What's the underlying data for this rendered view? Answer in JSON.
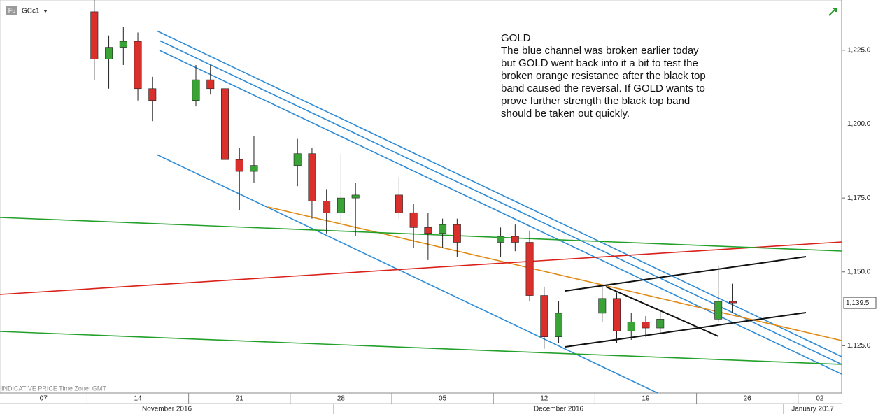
{
  "header": {
    "badge": "Fu",
    "symbol": "GCc1"
  },
  "footer": "INDICATIVE PRICE   Time Zone: GMT",
  "chart_data": {
    "type": "candlestick",
    "annotation_title": "GOLD",
    "annotation": "The blue channel was broken earlier today but GOLD went back into it a bit to test the broken orange resistance after the black top band caused the reversal. If GOLD wants to prove further strength the black top band should be taken out quickly.",
    "x": [
      "2016-11-14",
      "2016-11-15",
      "2016-11-16",
      "2016-11-17",
      "2016-11-18",
      "2016-11-21",
      "2016-11-22",
      "2016-11-23",
      "2016-11-24",
      "2016-11-25",
      "2016-11-28",
      "2016-11-29",
      "2016-11-30",
      "2016-12-01",
      "2016-12-02",
      "2016-12-05",
      "2016-12-06",
      "2016-12-07",
      "2016-12-08",
      "2016-12-09",
      "2016-12-12",
      "2016-12-13",
      "2016-12-14",
      "2016-12-15",
      "2016-12-16",
      "2016-12-19",
      "2016-12-20",
      "2016-12-21",
      "2016-12-22",
      "2016-12-23",
      "2016-12-27",
      "2016-12-28"
    ],
    "open": [
      1238,
      1222,
      1226,
      1228,
      1212,
      1208,
      1215,
      1212,
      1188,
      1184,
      1186,
      1190,
      1174,
      1170,
      1175,
      1176,
      1170,
      1165,
      1163,
      1166,
      1160,
      1162,
      1160,
      1142,
      1128,
      1136,
      1141,
      1130,
      1133,
      1131,
      1134,
      1140
    ],
    "high": [
      1242,
      1230,
      1233,
      1231,
      1216,
      1220,
      1220,
      1214,
      1192,
      1196,
      1195,
      1192,
      1178,
      1190,
      1180,
      1182,
      1173,
      1170,
      1168,
      1168,
      1165,
      1166,
      1164,
      1145,
      1140,
      1145,
      1143,
      1136,
      1135,
      1137,
      1152,
      1146
    ],
    "low": [
      1215,
      1212,
      1220,
      1208,
      1201,
      1206,
      1210,
      1185,
      1171,
      1180,
      1179,
      1168,
      1163,
      1166,
      1162,
      1168,
      1158,
      1154,
      1158,
      1155,
      1155,
      1157,
      1140,
      1124,
      1126,
      1133,
      1126,
      1127,
      1128,
      1129,
      1133,
      1136
    ],
    "close": [
      1222,
      1226,
      1228,
      1212,
      1208,
      1215,
      1212,
      1188,
      1184,
      1186,
      1190,
      1174,
      1170,
      1175,
      1176,
      1170,
      1165,
      1163,
      1166,
      1160,
      1162,
      1160,
      1142,
      1128,
      1136,
      1141,
      1130,
      1133,
      1131,
      1134,
      1140,
      1139.5
    ],
    "last_price": {
      "value": 1139.5,
      "label": "1,139.5"
    },
    "up_color": "#3aa335",
    "down_color": "#d9302c",
    "xlim": [
      "2016-11-08",
      "2017-01-05"
    ],
    "xticks": [
      {
        "value": "2016-11-07",
        "label": "07"
      },
      {
        "value": "2016-11-14",
        "label": "14"
      },
      {
        "value": "2016-11-21",
        "label": "21"
      },
      {
        "value": "2016-11-28",
        "label": "28"
      },
      {
        "value": "2016-12-05",
        "label": "05"
      },
      {
        "value": "2016-12-12",
        "label": "12"
      },
      {
        "value": "2016-12-19",
        "label": "19"
      },
      {
        "value": "2016-12-26",
        "label": "26"
      },
      {
        "value": "2017-01-02",
        "label": "02"
      }
    ],
    "months": [
      {
        "value": "2016-11",
        "label": "November 2016"
      },
      {
        "value": "2016-12",
        "label": "December 2016"
      },
      {
        "value": "2017-01",
        "label": "January 2017"
      }
    ],
    "ylim": [
      1109,
      1242
    ],
    "yticks": [
      {
        "value": 1125,
        "label": "1,125.0"
      },
      {
        "value": 1150,
        "label": "1,150.0"
      },
      {
        "value": 1175,
        "label": "1,175.0"
      },
      {
        "value": 1200,
        "label": "1,200.0"
      },
      {
        "value": 1225,
        "label": "1,225.0"
      }
    ]
  }
}
